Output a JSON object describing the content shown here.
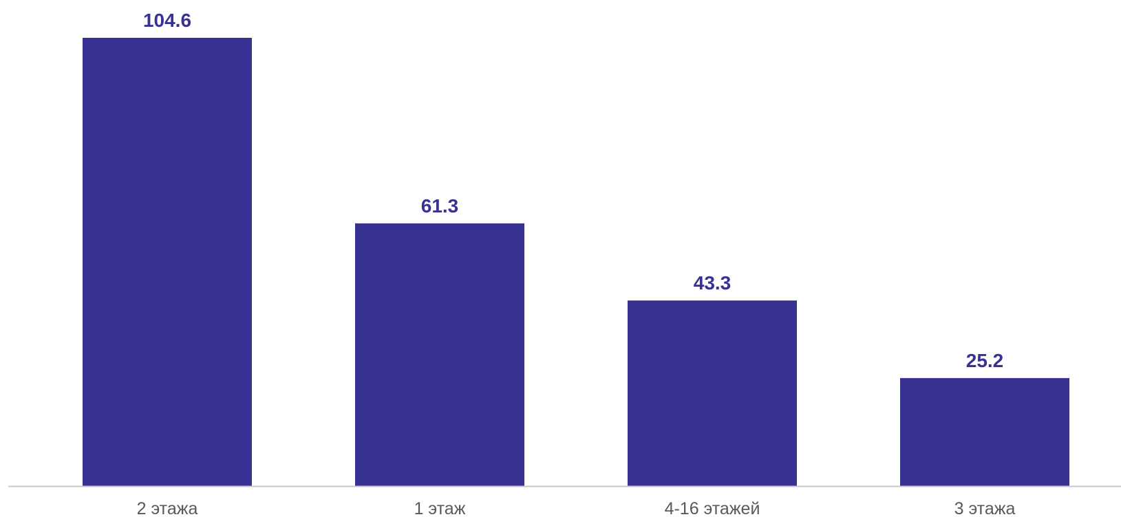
{
  "chart_data": {
    "type": "bar",
    "title": "",
    "xlabel": "",
    "ylabel": "",
    "categories": [
      "2 этажа",
      "1 этаж",
      "4-16 этажей",
      "3 этажа"
    ],
    "values": [
      104.6,
      61.3,
      43.3,
      25.2
    ],
    "value_labels": [
      "104.6",
      "61.3",
      "43.3",
      "25.2"
    ],
    "ylim": [
      0,
      104.6
    ],
    "grid": false,
    "legend": "none",
    "colors": {
      "bar": "#373193",
      "value_label": "#373193",
      "category_label": "#595959",
      "axis_line": "#c8c8c8"
    }
  }
}
